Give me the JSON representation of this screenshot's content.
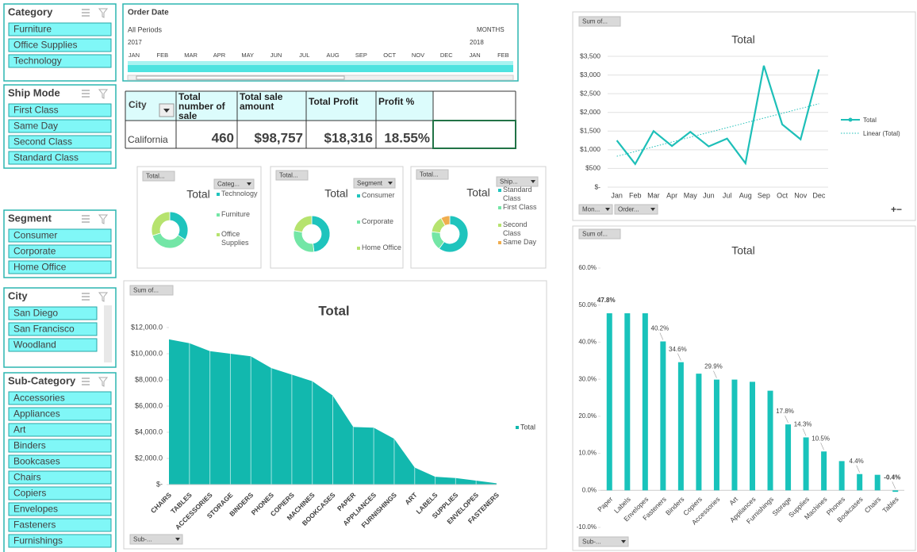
{
  "slicers": [
    {
      "title": "Category",
      "items": [
        "Furniture",
        "Office Supplies",
        "Technology"
      ]
    },
    {
      "title": "Ship Mode",
      "items": [
        "First Class",
        "Same Day",
        "Second Class",
        "Standard Class"
      ]
    },
    {
      "title": "Segment",
      "items": [
        "Consumer",
        "Corporate",
        "Home Office"
      ]
    },
    {
      "title": "City",
      "items": [
        "San Diego",
        "San Francisco",
        "Woodland"
      ]
    },
    {
      "title": "Sub-Category",
      "items": [
        "Accessories",
        "Appliances",
        "Art",
        "Binders",
        "Bookcases",
        "Chairs",
        "Copiers",
        "Envelopes",
        "Fasteners",
        "Furnishings"
      ]
    }
  ],
  "timeline": {
    "title": "Order Date",
    "period": "All Periods",
    "unit": "MONTHS",
    "years": [
      "2017",
      "2018"
    ],
    "months": [
      "JAN",
      "FEB",
      "MAR",
      "APR",
      "MAY",
      "JUN",
      "JUL",
      "AUG",
      "SEP",
      "OCT",
      "NOV",
      "DEC",
      "JAN",
      "FEB"
    ]
  },
  "kpi_table": {
    "header": [
      "City",
      "Total number of sale",
      "Total sale amount",
      "Total Profit",
      "Profit %"
    ],
    "rows": [
      [
        "California",
        "460",
        "$98,757",
        "$18,316",
        "18.55%"
      ]
    ]
  },
  "chart_data": [
    {
      "type": "line",
      "title": "Total",
      "field_buttons": [
        "Sum of...",
        "Mon...",
        "Order..."
      ],
      "categories": [
        "Jan",
        "Feb",
        "Mar",
        "Apr",
        "May",
        "Jun",
        "Jul",
        "Aug",
        "Sep",
        "Oct",
        "Nov",
        "Dec"
      ],
      "series": [
        {
          "name": "Total",
          "color": "#1dbfb8",
          "values": [
            1250,
            620,
            1500,
            1100,
            1480,
            1090,
            1300,
            640,
            3250,
            1680,
            1280,
            3150
          ]
        }
      ],
      "trendline": "Linear (Total)",
      "ylim": [
        0,
        3500
      ],
      "yticks": [
        {
          "value": 0,
          "label": "$-"
        },
        {
          "value": 500,
          "label": "$500"
        },
        {
          "value": 1000,
          "label": "$1,000"
        },
        {
          "value": 1500,
          "label": "$1,500"
        },
        {
          "value": 2000,
          "label": "$2,000"
        },
        {
          "value": 2500,
          "label": "$2,500"
        },
        {
          "value": 3000,
          "label": "$3,000"
        },
        {
          "value": 3500,
          "label": "$3,500"
        }
      ],
      "grid": true
    },
    {
      "type": "pie",
      "title": "Total",
      "field_buttons": [
        "Total...",
        "Categ..."
      ],
      "categories": [
        "Technology",
        "Furniture",
        "Office Supplies"
      ],
      "values": [
        34,
        36,
        30
      ],
      "colors": [
        "#1fc4bd",
        "#73e6a6",
        "#b6e36e"
      ]
    },
    {
      "type": "pie",
      "title": "Total",
      "field_buttons": [
        "Total...",
        "Segment"
      ],
      "categories": [
        "Consumer",
        "Corporate",
        "Home Office"
      ],
      "values": [
        48,
        30,
        22
      ],
      "colors": [
        "#1fc4bd",
        "#73e6a6",
        "#b6e36e"
      ]
    },
    {
      "type": "pie",
      "title": "Total",
      "field_buttons": [
        "Total...",
        "Ship..."
      ],
      "categories": [
        "Standard Class",
        "First Class",
        "Second Class",
        "Same Day"
      ],
      "values": [
        60,
        17,
        15,
        8
      ],
      "colors": [
        "#1fc4bd",
        "#73e6a6",
        "#b6e36e",
        "#f0ad4e"
      ]
    },
    {
      "type": "area",
      "title": "Total",
      "field_buttons": [
        "Sum of...",
        "Sub-..."
      ],
      "categories": [
        "CHAIRS",
        "TABLES",
        "ACCESSORIES",
        "STORAGE",
        "BINDERS",
        "PHONES",
        "COPIERS",
        "MACHINES",
        "BOOKCASES",
        "PAPER",
        "APPLIANCES",
        "FURNISHINGS",
        "ART",
        "LABELS",
        "SUPPLIES",
        "ENVELOPES",
        "FASTENERS"
      ],
      "series": [
        {
          "name": "Total",
          "color": "#12b8ae",
          "values": [
            11100,
            10800,
            10200,
            10000,
            9800,
            8900,
            8400,
            7900,
            6800,
            4400,
            4350,
            3500,
            1300,
            600,
            500,
            300,
            100
          ]
        }
      ],
      "ylim": [
        0,
        12000
      ],
      "yticks": [
        {
          "value": 0,
          "label": "$-"
        },
        {
          "value": 2000,
          "label": "$2,000.0"
        },
        {
          "value": 4000,
          "label": "$4,000.0"
        },
        {
          "value": 6000,
          "label": "$6,000.0"
        },
        {
          "value": 8000,
          "label": "$8,000.0"
        },
        {
          "value": 10000,
          "label": "$10,000.0"
        },
        {
          "value": 12000,
          "label": "$12,000.0"
        }
      ],
      "grid": false
    },
    {
      "type": "bar",
      "title": "Total",
      "field_buttons": [
        "Sum of...",
        "Sub-..."
      ],
      "categories": [
        "Paper",
        "Labels",
        "Envelopes",
        "Fasteners",
        "Binders",
        "Copiers",
        "Accessories",
        "Art",
        "Appliances",
        "Furnishings",
        "Storage",
        "Supplies",
        "Machines",
        "Phones",
        "Bookcases",
        "Chairs",
        "Tables"
      ],
      "values": [
        47.8,
        47.8,
        47.8,
        40.2,
        34.6,
        31.5,
        29.9,
        29.9,
        29.3,
        26.9,
        17.8,
        14.3,
        10.5,
        7.9,
        4.4,
        4.2,
        -0.4
      ],
      "value_labels": [
        "47.8%",
        null,
        null,
        "40.2%",
        "34.6%",
        null,
        "29.9%",
        null,
        null,
        null,
        "17.8%",
        "14.3%",
        "10.5%",
        null,
        "4.4%",
        null,
        "-0.4%"
      ],
      "color": "#19c3bb",
      "ylim": [
        -10,
        60
      ],
      "yticks": [
        {
          "value": -10,
          "label": "-10.0%"
        },
        {
          "value": 0,
          "label": "0.0%"
        },
        {
          "value": 10,
          "label": "10.0%"
        },
        {
          "value": 20,
          "label": "20.0%"
        },
        {
          "value": 30,
          "label": "30.0%"
        },
        {
          "value": 40,
          "label": "40.0%"
        },
        {
          "value": 50,
          "label": "50.0%"
        },
        {
          "value": 60,
          "label": "60.0%"
        }
      ],
      "grid": false
    }
  ]
}
